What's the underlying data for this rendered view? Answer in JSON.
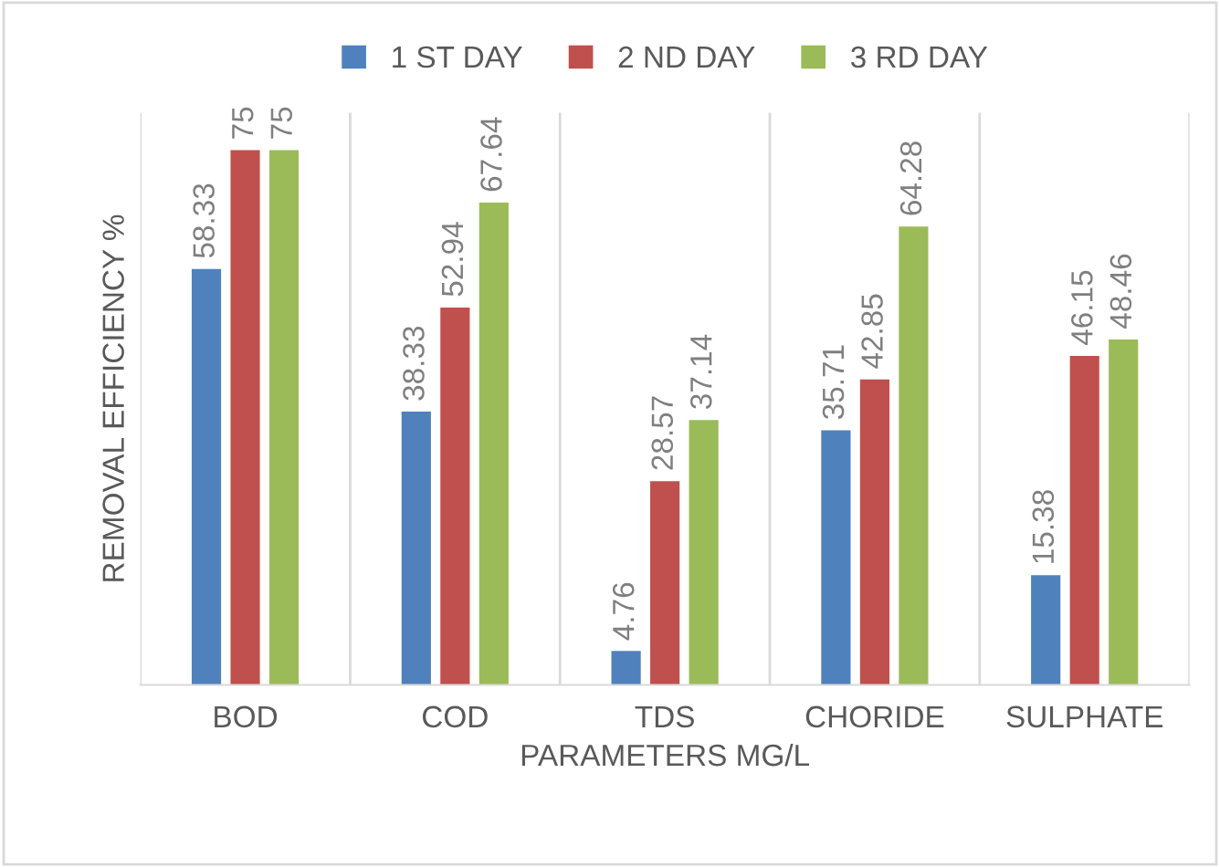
{
  "chart_data": {
    "type": "bar",
    "xlabel": "PARAMETERS MG/L",
    "ylabel": "REMOVAL EFFICIENCY %",
    "categories": [
      "BOD",
      "COD",
      "TDS",
      "CHORIDE",
      "SULPHATE"
    ],
    "series": [
      {
        "name": "1 ST DAY",
        "color": "#4f81bd",
        "values": [
          58.33,
          38.33,
          4.76,
          35.71,
          15.38
        ]
      },
      {
        "name": "2 ND DAY",
        "color": "#c0504d",
        "values": [
          75,
          52.94,
          28.57,
          42.85,
          46.15
        ]
      },
      {
        "name": "3 RD DAY",
        "color": "#9bbb59",
        "values": [
          75,
          67.64,
          37.14,
          64.28,
          48.46
        ]
      }
    ],
    "data_labels": true,
    "grid": "x",
    "legend": "top",
    "tick_labels": "x"
  }
}
